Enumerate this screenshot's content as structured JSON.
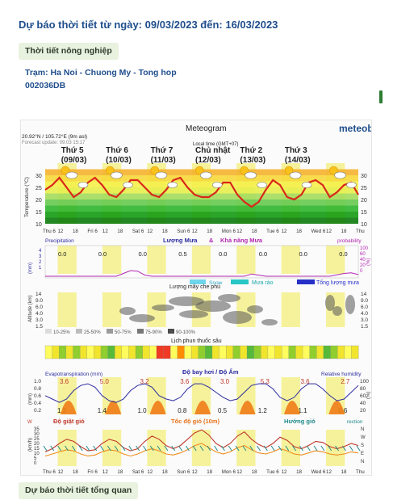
{
  "header": {
    "title": "Dự báo thời tiết từ ngày: 09/03/2023 đến: 16/03/2023",
    "agri_chip": "Thời tiết nông nghiệp",
    "station_line": "Trạm: Ha Noi - Chuong My - Tong hop",
    "station_code": "002036DB",
    "overview_chip": "Dự báo thời tiết tổng quan"
  },
  "meteogram": {
    "title": "Meteogram",
    "brand": "meteoblue",
    "coords": "20.92°N / 105.72°E (9m asl)",
    "forecast_update": "Forecast update: 09.03 15:17",
    "local_time": "Local time (GMT+07)",
    "days": [
      {
        "name": "Thứ 5",
        "date": "(09/03)"
      },
      {
        "name": "Thứ 6",
        "date": "(10/03)"
      },
      {
        "name": "Thứ 7",
        "date": "(11/03)"
      },
      {
        "name": "Chủ nhật",
        "date": "(12/03)"
      },
      {
        "name": "Thứ 2",
        "date": "(13/03)"
      },
      {
        "name": "Thứ 3",
        "date": "(14/03)"
      }
    ],
    "time_axis": [
      "Thu 6",
      "12",
      "18",
      "Fri 6",
      "12",
      "18",
      "Sat 6",
      "12",
      "18",
      "Sun 6",
      "12",
      "18",
      "Mon 6",
      "12",
      "18",
      "Tue 6",
      "12",
      "18",
      "Wed 6",
      "12",
      "18",
      "Thu"
    ],
    "temperature": {
      "ylabel": "Temperature (°C)",
      "ticks": [
        "30",
        "25",
        "20",
        "15",
        "10"
      ],
      "max": [
        29,
        29,
        29,
        29,
        27,
        27,
        28
      ],
      "min": [
        21,
        21,
        21,
        21,
        18,
        20,
        21
      ],
      "series": [
        24,
        26,
        29,
        25,
        21,
        23,
        27,
        29,
        26,
        22,
        21,
        24,
        28,
        28,
        25,
        22,
        21,
        24,
        28,
        29,
        25,
        22,
        21,
        21,
        23,
        27,
        27,
        22,
        19,
        17,
        19,
        24,
        28,
        26,
        21,
        20,
        22,
        27,
        28,
        26,
        21,
        23,
        26,
        27,
        22
      ]
    },
    "precip": {
      "label_precip": "Precipitation",
      "label_rain": "Lượng Mưa",
      "amp": "&",
      "label_prob": "Khả năng Mưa",
      "label_probability": "probability",
      "ylabel": "(mm)",
      "ylabel_right": "(%)",
      "left_ticks": [
        "4",
        "3",
        "2",
        "1"
      ],
      "right_ticks": [
        "100",
        "60",
        "40",
        "20",
        "0"
      ],
      "day_totals": [
        "0.0",
        "0.0",
        "0.0",
        "0.5",
        "0.0",
        "0.0",
        "0.0",
        "0.0"
      ],
      "legend_snow": "Snow",
      "legend_shower": "Mưa rào",
      "legend_total": "Tổng lượng mưa",
      "probability": [
        0,
        0,
        0,
        0,
        0,
        0,
        0,
        0,
        0,
        0,
        0,
        10,
        20,
        18,
        4,
        0,
        0,
        0,
        0,
        0,
        0,
        0,
        0,
        0,
        0,
        0,
        0,
        0,
        0,
        8,
        4,
        0,
        0,
        0,
        0,
        0,
        0,
        0,
        0,
        0,
        0,
        5,
        10,
        12,
        6
      ]
    },
    "clouds": {
      "title": "Lượng mây che phủ",
      "ylabel": "Altitude (km)",
      "left_ticks": [
        "14",
        "9.0",
        "6.0",
        "4.0",
        "3.0",
        "1.5"
      ],
      "right_ticks": [
        "14",
        "9.0",
        "6.0",
        "4.0",
        "3.0",
        "1.5"
      ],
      "legend": [
        "10-25%",
        "25-50%",
        "50-75%",
        "75-90%",
        "90-100%"
      ]
    },
    "spray": {
      "title": "Lịch phun thuốc sâu",
      "colors": [
        "#fffc5e",
        "#f0e52c",
        "#8fce2e",
        "#56b93a",
        "#ef3b23",
        "#ff8c00"
      ],
      "pattern": [
        0,
        1,
        2,
        1,
        2,
        1,
        0,
        1,
        2,
        3,
        1,
        0,
        1,
        2,
        1,
        0,
        4,
        4,
        0,
        5,
        0,
        1,
        2,
        3,
        1,
        0,
        1,
        2,
        1,
        3,
        2,
        1,
        0,
        1,
        0,
        2,
        1,
        0,
        2,
        1,
        3,
        2,
        1,
        0,
        1
      ]
    },
    "evap": {
      "label_evap": "Evapotranspiration (mm)",
      "label_vapor": "Độ bay hơi / Độ Ẩm",
      "label_humidity": "Relative humidity",
      "ylabel": "(mm)",
      "ylabel_right": "(%)",
      "left_ticks": [
        "1.0",
        "0.8",
        "0.6",
        "0.4",
        "0.2"
      ],
      "right_ticks": [
        "100",
        "80",
        "60",
        "40",
        "20"
      ],
      "day_top": [
        "3.6",
        "5.0",
        "3.2",
        "3.6",
        "3.0",
        "5.3",
        "3.6",
        "2.7"
      ],
      "day_bottom": [
        "1.3",
        "1.4",
        "1.0",
        "0.8",
        "0.5",
        "1.2",
        "1.1",
        "0.6"
      ],
      "humidity": [
        60,
        50,
        40,
        50,
        75,
        90,
        95,
        85,
        60,
        45,
        40,
        50,
        75,
        90,
        95,
        85,
        60,
        50,
        45,
        55,
        80,
        95,
        95,
        85,
        70,
        55,
        45,
        50,
        70,
        90,
        95,
        95,
        80,
        55,
        45,
        55,
        80,
        95,
        95,
        80,
        60,
        45,
        50,
        70,
        90
      ]
    },
    "wind": {
      "label_gust": "Độ giật gió",
      "label_speed": "Tốc độ gió (10m)",
      "label_direction": "Hướng gió",
      "label_direction_right": "rection",
      "ylabel": "(km/h)",
      "ylabel_left": "W",
      "left_ticks": [
        "35",
        "30",
        "25",
        "20",
        "15",
        "10",
        "5",
        "0"
      ],
      "right_ticks": [
        "N",
        "W",
        "S",
        "E",
        "N"
      ],
      "speed": [
        8,
        10,
        12,
        14,
        13,
        10,
        8,
        9,
        12,
        14,
        13,
        10,
        8,
        10,
        13,
        15,
        13,
        10,
        9,
        11,
        14,
        18,
        20,
        16,
        12,
        10,
        12,
        16,
        18,
        14,
        11,
        10,
        12,
        15,
        13,
        10,
        9,
        11,
        13,
        12,
        10,
        9,
        10,
        12,
        11
      ],
      "gust": [
        12,
        15,
        20,
        24,
        22,
        17,
        13,
        14,
        20,
        24,
        22,
        16,
        13,
        15,
        22,
        27,
        24,
        18,
        15,
        18,
        24,
        30,
        33,
        28,
        20,
        16,
        20,
        27,
        31,
        24,
        19,
        16,
        20,
        26,
        23,
        17,
        15,
        18,
        22,
        21,
        17,
        15,
        17,
        20,
        18
      ]
    }
  }
}
